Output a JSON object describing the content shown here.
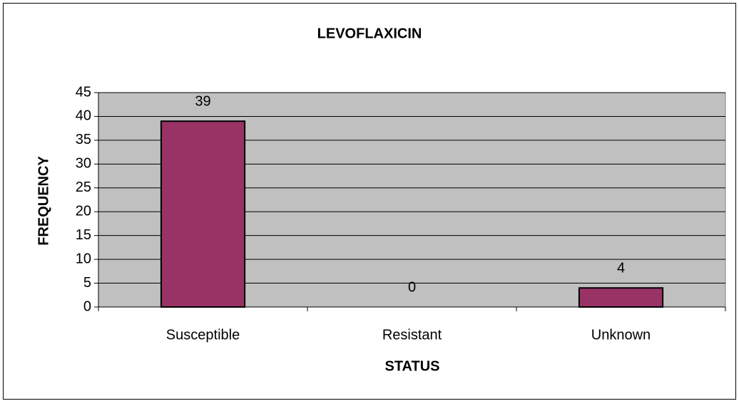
{
  "chart_data": {
    "type": "bar",
    "title": "LEVOFLAXICIN",
    "x_label": "STATUS",
    "y_label": "FREQUENCY",
    "categories": [
      "Susceptible",
      "Resistant",
      "Unknown"
    ],
    "values": [
      39,
      0,
      4
    ],
    "color": "#993366",
    "plot_background": "#c0c0c0",
    "ylim": [
      0,
      45
    ],
    "yticks": [
      0,
      5,
      10,
      15,
      20,
      25,
      30,
      35,
      40,
      45
    ],
    "grid": true
  }
}
